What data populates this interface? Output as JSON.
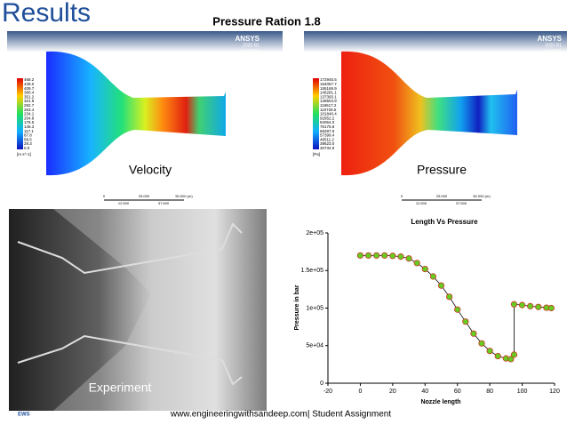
{
  "header": {
    "title": "Results",
    "subtitle": "Pressure Ration 1.8"
  },
  "velocity_panel": {
    "brand": "ANSYS",
    "version": "2020 R1",
    "edition": "ACADEMIC",
    "legend": [
      "468.2",
      "439.0",
      "409.7",
      "380.4",
      "351.2",
      "321.9",
      "292.7",
      "263.4",
      "234.1",
      "204.8",
      "175.6",
      "146.3",
      "117.1",
      "87.8",
      "58.5",
      "29.3",
      "0.0"
    ],
    "unit": "[m s^-1]",
    "scale": [
      "0",
      "25.000",
      "50.000 (m)",
      "12.500",
      "37.500"
    ],
    "label": "Velocity"
  },
  "pressure_panel": {
    "brand": "ANSYS",
    "version": "2020 R1",
    "edition": "ACADEMIC",
    "legend": [
      "172945.5",
      "164057.7",
      "155169.9",
      "146281.1",
      "137393.1",
      "128504.9",
      "119617.2",
      "110728.5",
      "101840.4",
      "92952.2",
      "84064.0",
      "75175.8",
      "66287.6",
      "57399.4",
      "48511.2",
      "39623.0",
      "30734.9"
    ],
    "unit": "[Pa]",
    "scale": [
      "0",
      "25.000",
      "50.000 (m)",
      "12.500",
      "37.500"
    ],
    "label": "Pressure"
  },
  "experiment_panel": {
    "label": "Experiment"
  },
  "chart_data": {
    "type": "scatter",
    "title": "Length Vs Pressure",
    "x_label": "Nozzle length",
    "y_label": "Pressure in bar",
    "x": [
      0,
      5,
      10,
      15,
      20,
      25,
      30,
      35,
      40,
      45,
      50,
      55,
      60,
      65,
      70,
      75,
      80,
      85,
      90,
      93,
      95,
      95,
      100,
      105,
      110,
      115,
      118
    ],
    "series": [
      {
        "name": "Pressure",
        "color": "#66cc22",
        "edge_color": "#cc3322",
        "values": [
          170000,
          170000,
          170000,
          170000,
          169500,
          168500,
          166000,
          160000,
          152000,
          142000,
          130000,
          115000,
          98000,
          82000,
          66000,
          53000,
          43000,
          36000,
          33000,
          32000,
          38000,
          105000,
          104000,
          102500,
          101500,
          100500,
          100000
        ]
      }
    ],
    "xlim": [
      -20,
      120
    ],
    "ylim": [
      0,
      200000
    ],
    "xticks": [
      -20,
      0,
      20,
      40,
      60,
      80,
      100,
      120
    ],
    "yticks": [
      0,
      {
        "value": 50000,
        "label": "5e+04"
      },
      {
        "value": 100000,
        "label": "1e+05"
      },
      {
        "value": 150000,
        "label": "1.5e+05"
      },
      {
        "value": 200000,
        "label": "2e+05"
      }
    ]
  },
  "footer": {
    "left": "EWS",
    "text": "www.engineeringwithsandeep.com| Student Assignment"
  }
}
